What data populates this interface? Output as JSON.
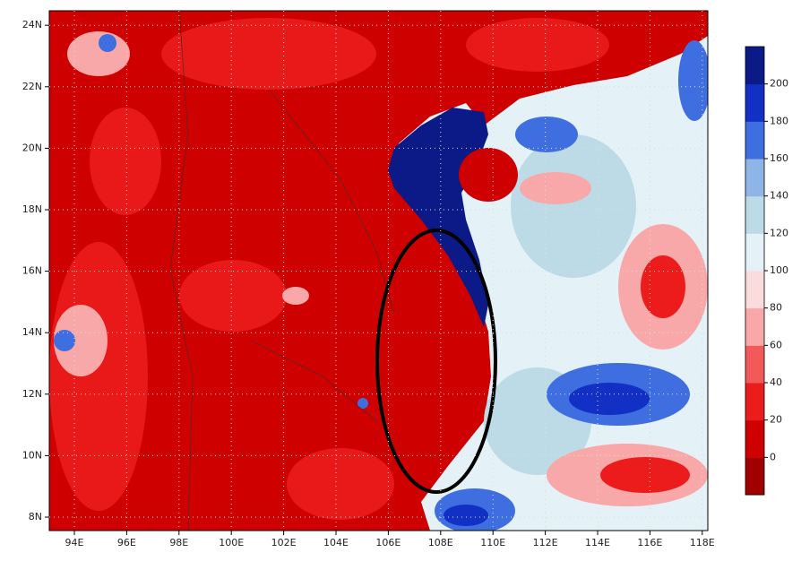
{
  "map": {
    "lon_labels": [
      "94E",
      "96E",
      "98E",
      "100E",
      "102E",
      "104E",
      "106E",
      "108E",
      "110E",
      "112E",
      "114E",
      "116E",
      "118E"
    ],
    "lat_labels": [
      "8N",
      "10N",
      "12N",
      "14N",
      "16N",
      "18N",
      "20N",
      "22N",
      "24N"
    ]
  },
  "colorbar": {
    "range": [
      -20,
      220
    ],
    "ticks": [
      0,
      20,
      40,
      60,
      80,
      100,
      120,
      140,
      160,
      180,
      200
    ],
    "colors": [
      "#a00000",
      "#cf0000",
      "#ec1c1c",
      "#f25a5a",
      "#f8a8a8",
      "#fbdcdc",
      "#e4f1f7",
      "#bcdbe6",
      "#8fb4e6",
      "#3e6ee0",
      "#1230c4",
      "#0b1a86"
    ]
  }
}
